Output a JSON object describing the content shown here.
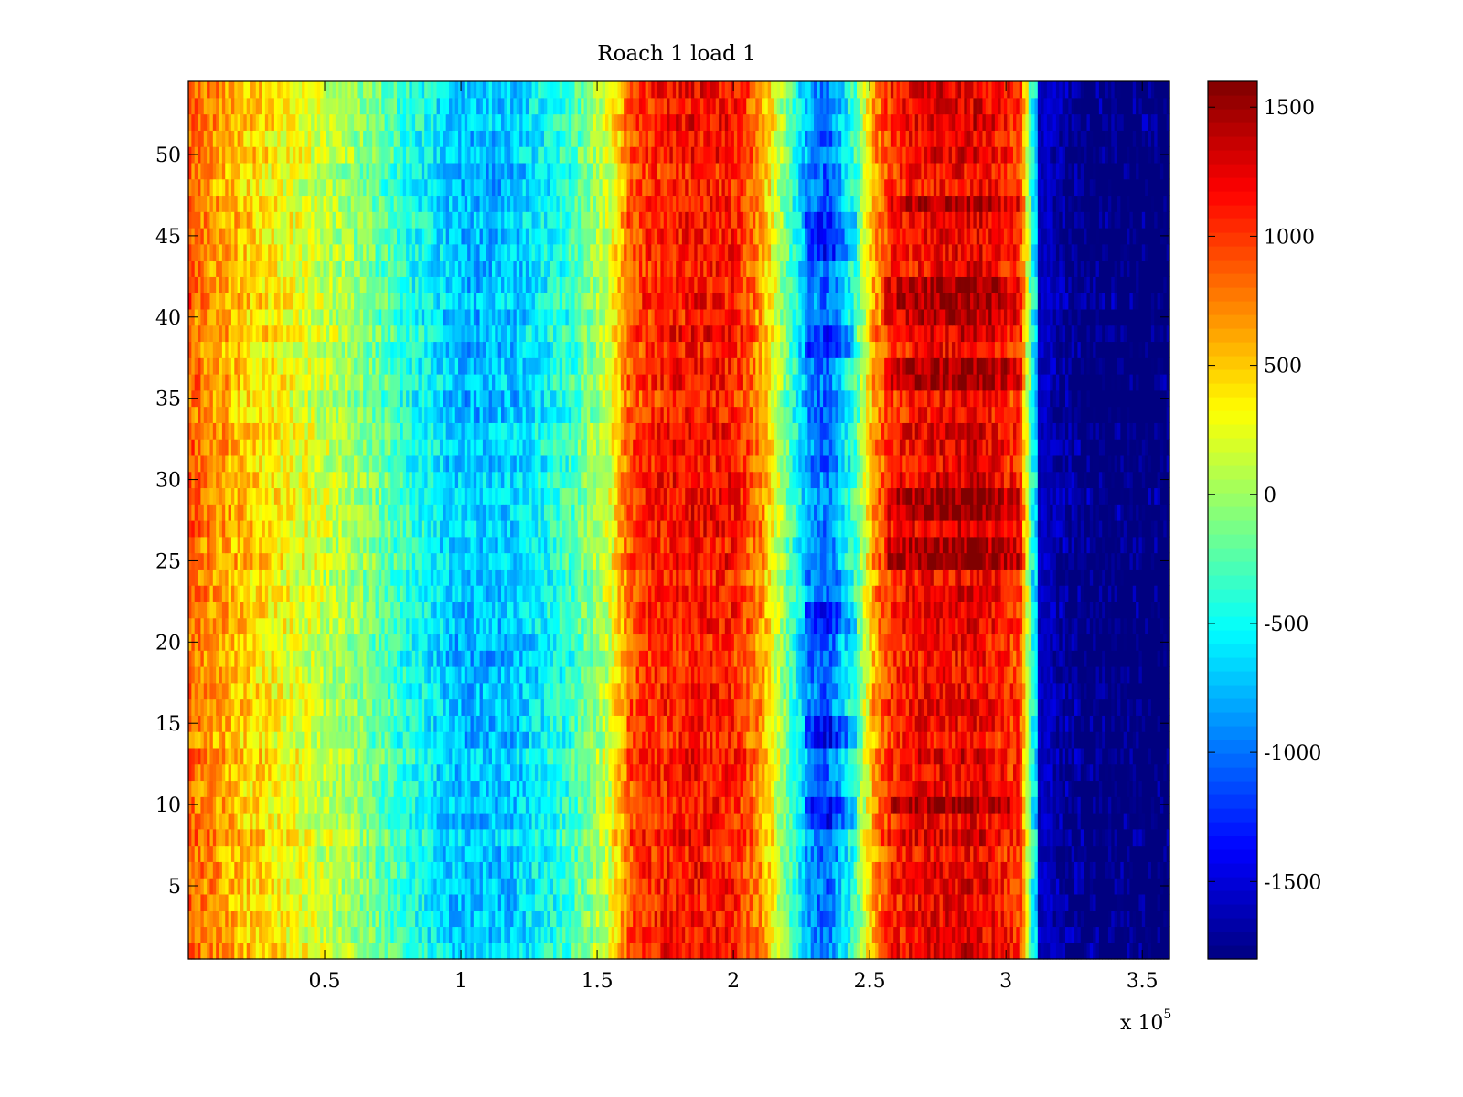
{
  "chart_data": {
    "type": "heatmap",
    "title": "Roach 1 load 1",
    "xlabel": "",
    "ylabel": "",
    "x_range": [
      0,
      360000
    ],
    "y_range": [
      0.5,
      54.5
    ],
    "rows": 54,
    "x_ticks": [
      50000,
      100000,
      150000,
      200000,
      250000,
      300000,
      350000
    ],
    "x_tick_labels": [
      "0.5",
      "1",
      "1.5",
      "2",
      "2.5",
      "3",
      "3.5"
    ],
    "x_exponent_label": "x 10",
    "x_exponent_power": "5",
    "y_ticks": [
      5,
      10,
      15,
      20,
      25,
      30,
      35,
      40,
      45,
      50
    ],
    "y_tick_labels": [
      "5",
      "10",
      "15",
      "20",
      "25",
      "30",
      "35",
      "40",
      "45",
      "50"
    ],
    "colormap": "jet",
    "colorbar": {
      "range": [
        -1800,
        1600
      ],
      "ticks": [
        -1500,
        -1000,
        -500,
        0,
        500,
        1000,
        1500
      ],
      "tick_labels": [
        "-1500",
        "-1000",
        "-500",
        "0",
        "500",
        "1000",
        "1500"
      ]
    },
    "column_profile": {
      "x": [
        0,
        5000,
        20000,
        40000,
        60000,
        80000,
        100000,
        120000,
        140000,
        155000,
        162000,
        170000,
        185000,
        200000,
        210000,
        220000,
        228000,
        235000,
        245000,
        252000,
        258000,
        270000,
        290000,
        305000,
        310000,
        318000,
        330000,
        360000
      ],
      "values": [
        900,
        750,
        500,
        250,
        0,
        -400,
        -750,
        -700,
        -350,
        200,
        900,
        1050,
        1150,
        1100,
        700,
        -200,
        -900,
        -1050,
        -300,
        700,
        1050,
        1200,
        1250,
        1000,
        -500,
        -1500,
        -1750,
        -1800
      ]
    },
    "hot_rows": [
      36,
      37,
      28,
      29,
      40,
      41,
      42,
      25,
      26,
      47,
      10
    ],
    "cold_rows": [
      9,
      10,
      14,
      15,
      21,
      22,
      38,
      39,
      44,
      45,
      46
    ],
    "noise_amplitude": 260
  }
}
